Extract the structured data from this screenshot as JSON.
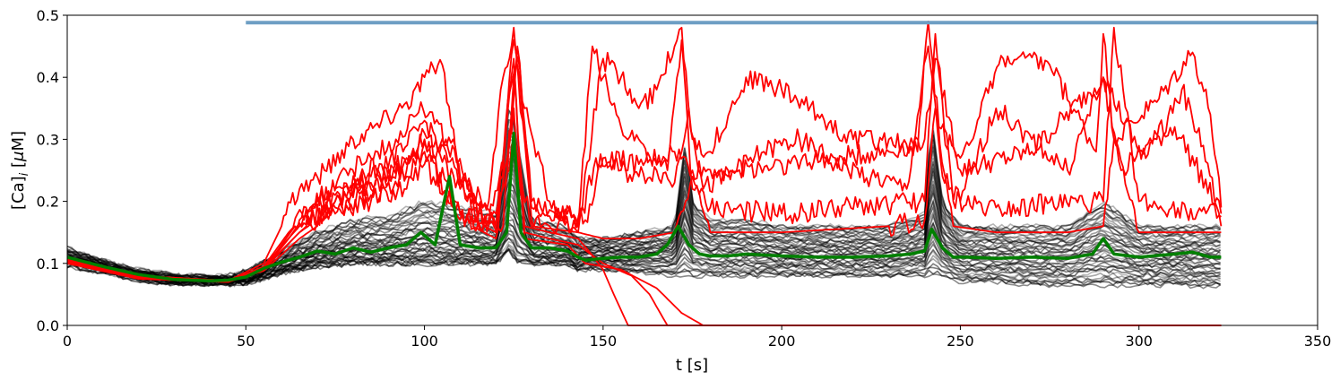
{
  "chart_data": {
    "type": "line",
    "title": "",
    "xlabel": "t [s]",
    "ylabel": "[Ca]",
    "ylabel_sub": "i",
    "ylabel_unit_open": " [",
    "ylabel_unit_mu": "μ",
    "ylabel_unit_close": "M]",
    "xlim": [
      0,
      350
    ],
    "ylim": [
      0,
      0.5
    ],
    "xticks": [
      0,
      50,
      100,
      150,
      200,
      250,
      300,
      350
    ],
    "yticks": [
      0.0,
      0.1,
      0.2,
      0.3,
      0.4,
      0.5
    ],
    "xtick_labels": [
      "0",
      "50",
      "100",
      "150",
      "200",
      "250",
      "300",
      "350"
    ],
    "ytick_labels": [
      "0.0",
      "0.1",
      "0.2",
      "0.3",
      "0.4",
      "0.5"
    ],
    "grid": false,
    "legend": "none",
    "colors": {
      "stimulus": "#6e9ec4",
      "mean": "#008000",
      "red_traces": "#ff0000",
      "black_traces": "#000000"
    },
    "stimulus_bar": {
      "x": [
        50,
        350
      ],
      "y": 0.488
    },
    "black_envelope": {
      "x": [
        0,
        10,
        20,
        30,
        40,
        45,
        50,
        60,
        70,
        80,
        90,
        100,
        110,
        120,
        124,
        126,
        130,
        140,
        143,
        150,
        160,
        170,
        173,
        175,
        180,
        190,
        200,
        210,
        220,
        230,
        240,
        242,
        245,
        250,
        260,
        270,
        280,
        290,
        300,
        310,
        323
      ],
      "upper": [
        0.125,
        0.105,
        0.09,
        0.082,
        0.08,
        0.08,
        0.088,
        0.12,
        0.15,
        0.17,
        0.175,
        0.2,
        0.19,
        0.18,
        0.37,
        0.3,
        0.17,
        0.16,
        0.14,
        0.14,
        0.15,
        0.16,
        0.3,
        0.2,
        0.17,
        0.17,
        0.16,
        0.16,
        0.16,
        0.16,
        0.18,
        0.34,
        0.2,
        0.16,
        0.16,
        0.16,
        0.16,
        0.2,
        0.16,
        0.16,
        0.16
      ],
      "lower": [
        0.095,
        0.085,
        0.072,
        0.066,
        0.066,
        0.066,
        0.068,
        0.085,
        0.095,
        0.1,
        0.1,
        0.1,
        0.1,
        0.1,
        0.12,
        0.1,
        0.1,
        0.1,
        0.09,
        0.09,
        0.085,
        0.08,
        0.08,
        0.08,
        0.08,
        0.08,
        0.08,
        0.08,
        0.08,
        0.08,
        0.08,
        0.08,
        0.08,
        0.07,
        0.07,
        0.065,
        0.065,
        0.065,
        0.065,
        0.065,
        0.062
      ]
    },
    "series": [
      {
        "color": "green",
        "x": [
          0,
          10,
          20,
          30,
          40,
          45,
          50,
          55,
          60,
          65,
          70,
          75,
          80,
          85,
          90,
          95,
          99,
          103,
          107,
          110,
          115,
          120,
          123,
          125,
          127,
          130,
          135,
          140,
          143,
          145,
          150,
          155,
          160,
          165,
          168,
          171,
          174,
          177,
          180,
          185,
          190,
          200,
          210,
          220,
          230,
          236,
          240,
          242,
          245,
          248,
          252,
          260,
          270,
          280,
          287,
          290,
          293,
          300,
          310,
          315,
          320,
          323
        ],
        "y": [
          0.11,
          0.095,
          0.082,
          0.074,
          0.072,
          0.073,
          0.078,
          0.092,
          0.102,
          0.11,
          0.12,
          0.115,
          0.125,
          0.118,
          0.125,
          0.13,
          0.15,
          0.13,
          0.24,
          0.13,
          0.125,
          0.125,
          0.15,
          0.31,
          0.15,
          0.125,
          0.125,
          0.12,
          0.11,
          0.105,
          0.108,
          0.11,
          0.11,
          0.115,
          0.13,
          0.16,
          0.13,
          0.115,
          0.112,
          0.112,
          0.115,
          0.112,
          0.11,
          0.11,
          0.112,
          0.115,
          0.12,
          0.155,
          0.125,
          0.11,
          0.11,
          0.108,
          0.11,
          0.108,
          0.115,
          0.14,
          0.115,
          0.11,
          0.115,
          0.118,
          0.11,
          0.11
        ]
      },
      {
        "color": "red",
        "x": [
          0,
          20,
          45,
          55,
          60,
          65,
          72,
          80,
          88,
          95,
          100,
          105,
          110,
          118,
          122,
          125,
          128,
          135,
          143,
          150,
          155,
          160,
          165,
          170,
          172,
          175,
          180,
          190,
          200,
          210,
          220,
          230,
          238,
          241,
          244,
          250,
          262,
          275,
          288,
          290,
          293,
          305,
          315,
          320,
          323
        ],
        "y": [
          0.11,
          0.08,
          0.072,
          0.1,
          0.16,
          0.22,
          0.25,
          0.3,
          0.33,
          0.36,
          0.4,
          0.42,
          0.23,
          0.2,
          0.4,
          0.48,
          0.35,
          0.2,
          0.16,
          0.43,
          0.4,
          0.35,
          0.38,
          0.45,
          0.48,
          0.3,
          0.28,
          0.4,
          0.38,
          0.34,
          0.3,
          0.3,
          0.28,
          0.49,
          0.32,
          0.27,
          0.43,
          0.42,
          0.28,
          0.47,
          0.3,
          0.36,
          0.44,
          0.34,
          0.19
        ]
      },
      {
        "color": "red",
        "x": [
          0,
          20,
          45,
          55,
          62,
          70,
          78,
          85,
          92,
          99,
          106,
          112,
          120,
          124,
          126,
          130,
          140,
          145,
          150,
          160,
          170,
          175,
          185,
          200,
          215,
          230,
          240,
          243,
          250,
          270,
          290,
          300,
          310,
          323
        ],
        "y": [
          0.105,
          0.078,
          0.07,
          0.095,
          0.15,
          0.2,
          0.25,
          0.27,
          0.3,
          0.36,
          0.3,
          0.22,
          0.18,
          0.38,
          0.42,
          0.2,
          0.18,
          0.17,
          0.27,
          0.26,
          0.28,
          0.25,
          0.25,
          0.26,
          0.27,
          0.28,
          0.3,
          0.43,
          0.25,
          0.28,
          0.4,
          0.28,
          0.32,
          0.18
        ]
      },
      {
        "color": "red",
        "x": [
          0,
          20,
          45,
          55,
          62,
          68,
          75,
          82,
          88,
          94,
          100,
          106,
          112,
          118,
          124,
          126,
          130,
          140,
          143,
          148,
          155,
          160,
          165,
          170,
          174,
          178,
          185,
          195,
          205,
          215,
          225,
          235,
          241,
          245,
          250,
          260,
          270,
          280,
          290,
          295,
          305,
          312,
          318,
          323
        ],
        "y": [
          0.1,
          0.075,
          0.07,
          0.09,
          0.14,
          0.19,
          0.22,
          0.24,
          0.26,
          0.28,
          0.33,
          0.28,
          0.2,
          0.17,
          0.3,
          0.45,
          0.19,
          0.17,
          0.15,
          0.27,
          0.25,
          0.24,
          0.25,
          0.23,
          0.35,
          0.22,
          0.24,
          0.28,
          0.3,
          0.26,
          0.24,
          0.22,
          0.45,
          0.24,
          0.2,
          0.35,
          0.3,
          0.25,
          0.4,
          0.25,
          0.3,
          0.38,
          0.29,
          0.16
        ]
      },
      {
        "color": "red",
        "x": [
          0,
          20,
          45,
          55,
          65,
          75,
          85,
          95,
          102,
          108,
          115,
          122,
          125,
          128,
          135,
          143,
          146,
          150,
          153,
          157,
          160,
          323
        ],
        "y": [
          0.108,
          0.08,
          0.072,
          0.09,
          0.17,
          0.21,
          0.23,
          0.26,
          0.29,
          0.3,
          0.17,
          0.16,
          0.4,
          0.16,
          0.15,
          0.14,
          0.12,
          0.09,
          0.05,
          0.0,
          0.0,
          0.0
        ]
      },
      {
        "color": "red",
        "x": [
          0,
          20,
          45,
          55,
          65,
          75,
          85,
          95,
          100,
          110,
          120,
          125,
          128,
          135,
          143,
          150,
          158,
          163,
          168,
          172,
          323
        ],
        "y": [
          0.1,
          0.078,
          0.071,
          0.095,
          0.16,
          0.2,
          0.22,
          0.27,
          0.3,
          0.18,
          0.15,
          0.43,
          0.15,
          0.14,
          0.13,
          0.1,
          0.08,
          0.05,
          0.0,
          0.0,
          0.0
        ]
      },
      {
        "color": "red",
        "x": [
          0,
          20,
          45,
          55,
          65,
          75,
          85,
          95,
          100,
          110,
          120,
          125,
          128,
          140,
          145,
          155,
          165,
          172,
          178,
          323
        ],
        "y": [
          0.103,
          0.077,
          0.07,
          0.09,
          0.15,
          0.19,
          0.21,
          0.24,
          0.28,
          0.17,
          0.14,
          0.35,
          0.14,
          0.13,
          0.1,
          0.09,
          0.06,
          0.02,
          0.0,
          0.0
        ]
      },
      {
        "color": "red",
        "x": [
          0,
          20,
          45,
          55,
          65,
          75,
          85,
          95,
          100,
          110,
          120,
          125,
          130,
          143,
          147,
          150,
          155,
          160,
          165,
          168,
          172,
          175,
          180,
          200,
          240,
          243,
          248,
          260,
          290,
          293,
          300,
          323
        ],
        "y": [
          0.106,
          0.079,
          0.071,
          0.092,
          0.15,
          0.2,
          0.24,
          0.25,
          0.31,
          0.22,
          0.16,
          0.46,
          0.17,
          0.16,
          0.45,
          0.4,
          0.32,
          0.3,
          0.26,
          0.25,
          0.46,
          0.22,
          0.19,
          0.18,
          0.2,
          0.47,
          0.2,
          0.19,
          0.2,
          0.48,
          0.2,
          0.175
        ]
      },
      {
        "color": "red",
        "x": [
          0,
          20,
          45,
          55,
          65,
          75,
          85,
          95,
          100,
          110,
          120,
          125,
          130,
          143,
          150,
          160,
          170,
          175,
          180,
          200,
          230,
          240,
          243,
          248,
          260,
          280,
          290,
          293,
          300,
          323
        ],
        "y": [
          0.102,
          0.076,
          0.07,
          0.088,
          0.14,
          0.18,
          0.2,
          0.22,
          0.26,
          0.18,
          0.16,
          0.3,
          0.16,
          0.15,
          0.14,
          0.14,
          0.15,
          0.24,
          0.15,
          0.15,
          0.16,
          0.17,
          0.35,
          0.16,
          0.15,
          0.15,
          0.16,
          0.3,
          0.15,
          0.15
        ]
      }
    ]
  }
}
